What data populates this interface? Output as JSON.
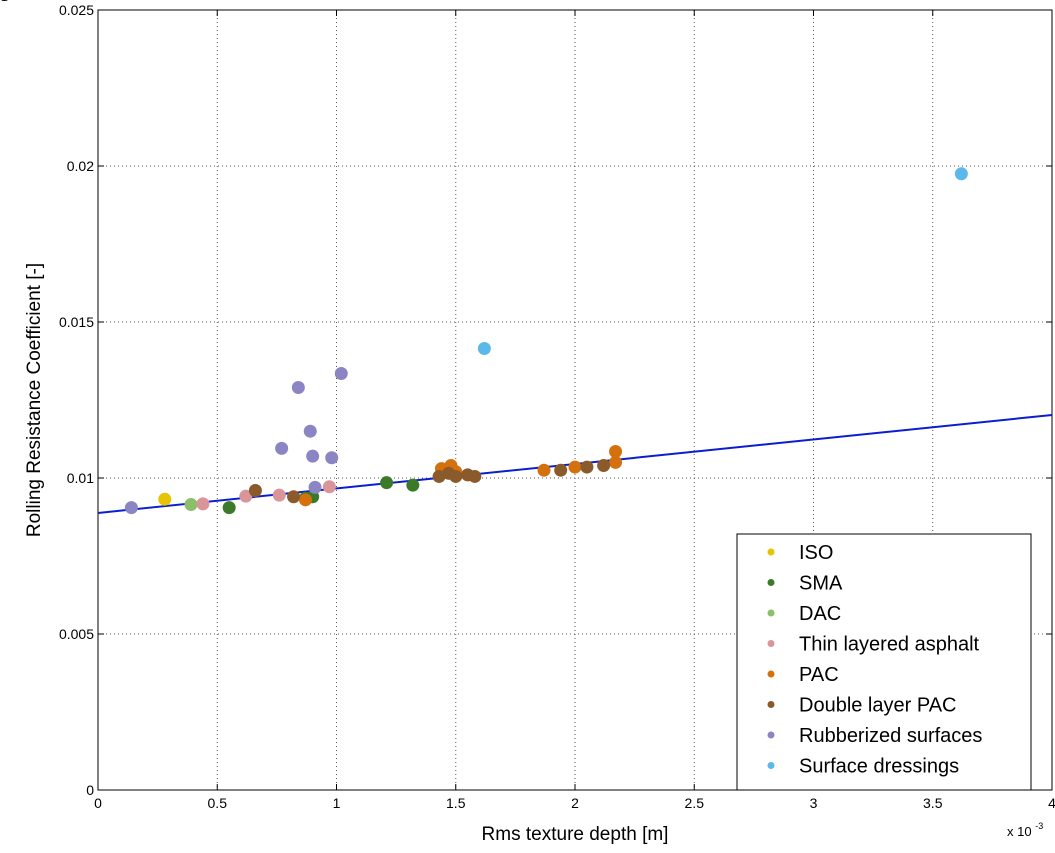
{
  "chart_data": {
    "type": "scatter",
    "xlabel": "Rms texture depth [m]",
    "ylabel": "Rolling Resistance Coefficient [-]",
    "x_multiplier_label": {
      "base": "x 10",
      "exponent": "-3"
    },
    "xlim": [
      0,
      0.004
    ],
    "ylim": [
      0,
      0.025
    ],
    "x_ticks": [
      0,
      0.0005,
      0.001,
      0.0015,
      0.002,
      0.0025,
      0.003,
      0.0035,
      0.004
    ],
    "x_tick_labels": [
      "0",
      "0.5",
      "1",
      "1.5",
      "2",
      "2.5",
      "3",
      "3.5",
      "4"
    ],
    "y_ticks": [
      0,
      0.005,
      0.01,
      0.015,
      0.02,
      0.025
    ],
    "y_tick_labels": [
      "0",
      "0.005",
      "0.01",
      "0.015",
      "0.02",
      "0.025"
    ],
    "grid": true,
    "legend_position": "bottom-right",
    "series": [
      {
        "name": "ISO",
        "color": "#e8c400",
        "points": [
          [
            0.00028,
            0.00932
          ]
        ]
      },
      {
        "name": "SMA",
        "color": "#3a7a28",
        "points": [
          [
            0.00055,
            0.00905
          ],
          [
            0.00087,
            0.00935
          ],
          [
            0.0009,
            0.0094
          ],
          [
            0.00121,
            0.00985
          ],
          [
            0.00132,
            0.00977
          ]
        ]
      },
      {
        "name": "DAC",
        "color": "#8cbf6a",
        "points": [
          [
            0.00039,
            0.00915
          ]
        ]
      },
      {
        "name": "Thin layered asphalt",
        "color": "#d9959a",
        "points": [
          [
            0.00044,
            0.00917
          ],
          [
            0.00062,
            0.00942
          ],
          [
            0.00076,
            0.00945
          ],
          [
            0.00097,
            0.00972
          ]
        ]
      },
      {
        "name": "PAC",
        "color": "#d4700e",
        "points": [
          [
            0.00144,
            0.0103
          ],
          [
            0.00148,
            0.0104
          ],
          [
            0.0015,
            0.0102
          ],
          [
            0.00187,
            0.01025
          ],
          [
            0.002,
            0.01035
          ],
          [
            0.00217,
            0.0105
          ],
          [
            0.00217,
            0.01085
          ],
          [
            0.00087,
            0.0093
          ]
        ]
      },
      {
        "name": "Double layer PAC",
        "color": "#8a5a2a",
        "points": [
          [
            0.00066,
            0.0096
          ],
          [
            0.00082,
            0.0094
          ],
          [
            0.00143,
            0.01005
          ],
          [
            0.00147,
            0.01015
          ],
          [
            0.0015,
            0.01005
          ],
          [
            0.00155,
            0.0101
          ],
          [
            0.00158,
            0.01005
          ],
          [
            0.00194,
            0.01025
          ],
          [
            0.00205,
            0.01035
          ],
          [
            0.00212,
            0.0104
          ]
        ]
      },
      {
        "name": "Rubberized surfaces",
        "color": "#8c85c4",
        "points": [
          [
            0.00014,
            0.00905
          ],
          [
            0.00077,
            0.01095
          ],
          [
            0.00084,
            0.0129
          ],
          [
            0.00089,
            0.0115
          ],
          [
            0.0009,
            0.0107
          ],
          [
            0.00091,
            0.0097
          ],
          [
            0.00098,
            0.01065
          ],
          [
            0.00102,
            0.01335
          ]
        ]
      },
      {
        "name": "Surface dressings",
        "color": "#5ab8ea",
        "points": [
          [
            0.00162,
            0.01415
          ],
          [
            0.00362,
            0.01975
          ]
        ]
      }
    ],
    "fit_line": {
      "color": "#0a1ed0",
      "x": [
        0,
        0.004
      ],
      "y": [
        0.00888,
        0.01202
      ]
    }
  }
}
